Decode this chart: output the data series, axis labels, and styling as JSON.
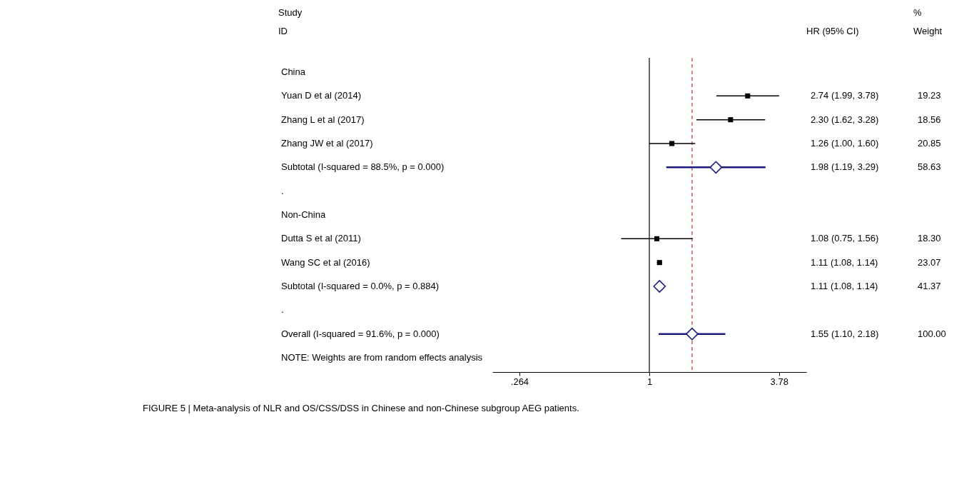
{
  "chart_data": {
    "type": "scatter",
    "orientation": "horizontal",
    "title": "FIGURE 5 | Meta-analysis of NLR and OS/CSS/DSS in Chinese and non-Chinese subgroup AEG patients.",
    "categories": [
      "China",
      "Yuan D et al (2014)",
      "Zhang L et al (2017)",
      "Zhang JW et al (2017)",
      "Subtotal  (I-squared = 88.5%, p = 0.000)",
      ".",
      "Non-China",
      "Dutta S et al (2011)",
      "Wang SC et al (2016)",
      "Subtotal  (I-squared = 0.0%, p = 0.884)",
      ".",
      "Overall  (I-squared = 91.6%, p = 0.000)"
    ],
    "series": [
      {
        "type": "scatter",
        "marker": "square",
        "color": "#000000",
        "values": [
          null,
          2.74,
          2.3,
          1.26,
          null,
          null,
          null,
          1.08,
          1.11,
          null,
          null,
          null
        ],
        "errors": [
          null,
          [
            1.99,
            3.78
          ],
          [
            1.62,
            3.28
          ],
          [
            1.0,
            1.6
          ],
          null,
          null,
          null,
          [
            0.75,
            1.56
          ],
          [
            1.08,
            1.14
          ],
          null,
          null,
          null
        ],
        "value_labels": [
          null,
          "2.74 (1.99, 3.78)",
          "2.30 (1.62, 3.28)",
          "1.26 (1.00, 1.60)",
          null,
          null,
          null,
          "1.08 (0.75, 1.56)",
          "1.11 (1.08, 1.14)",
          null,
          null,
          null
        ]
      },
      {
        "type": "scatter",
        "marker": "diamond",
        "color": "#1a1a80",
        "values": [
          null,
          null,
          null,
          null,
          1.98,
          null,
          null,
          null,
          null,
          1.11,
          null,
          1.55
        ],
        "errors": [
          null,
          null,
          null,
          null,
          [
            1.19,
            3.29
          ],
          null,
          null,
          null,
          null,
          [
            1.08,
            1.14
          ],
          null,
          [
            1.1,
            2.18
          ]
        ]
      }
    ],
    "xlim": [
      0.2,
      5
    ],
    "xticks": [
      {
        "value": 0.264,
        "label": ".264"
      },
      1,
      3.78
    ],
    "ref_lines": [
      {
        "axis": "x",
        "value": 1,
        "color": "#000000",
        "line_style": "solid"
      },
      {
        "axis": "x",
        "value": 1.55,
        "color": "#c0392b",
        "line_style": "dashed"
      }
    ],
    "log": "x",
    "grid": false,
    "tick_labels": "x",
    "annotations": [
      "Study",
      "ID",
      "HR (95% CI)",
      "%",
      "Weight",
      "NOTE: Weights are from random effects analysis",
      "19.23",
      "18.56",
      "20.85",
      "58.63",
      "18.30",
      "23.07",
      "41.37",
      "100.00",
      "1.98 (1.19, 3.29)",
      "1.11 (1.08, 1.14)",
      "1.55 (1.10, 2.18)"
    ]
  }
}
